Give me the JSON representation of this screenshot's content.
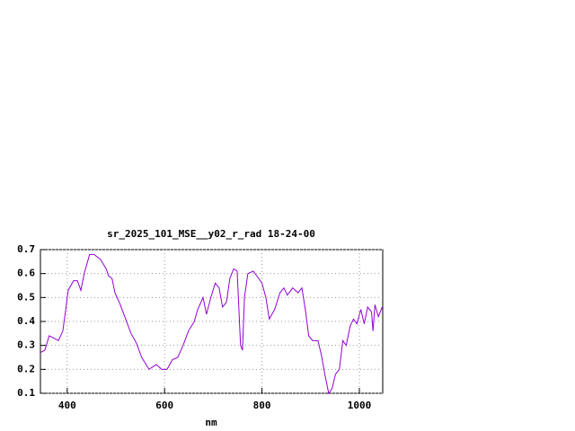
{
  "chart_data": {
    "type": "line",
    "title": "sr_2025_101_MSE__y02_r_rad 18-24-00",
    "x_label": "nm",
    "x": [
      345,
      354,
      363,
      373,
      382,
      391,
      397,
      402,
      413,
      421,
      428,
      435,
      446,
      455,
      468,
      480,
      485,
      492,
      498,
      509,
      520,
      531,
      542,
      553,
      568,
      583,
      594,
      605,
      616,
      627,
      638,
      649,
      661,
      668,
      679,
      686,
      695,
      704,
      712,
      719,
      727,
      734,
      742,
      749,
      756,
      760,
      764,
      771,
      782,
      793,
      800,
      808,
      815,
      826,
      837,
      845,
      852,
      863,
      874,
      882,
      889,
      896,
      904,
      915,
      922,
      930,
      937,
      944,
      951,
      959,
      966,
      973,
      981,
      988,
      995,
      1003,
      1010,
      1017,
      1025,
      1028,
      1032,
      1039,
      1047
    ],
    "series": [
      {
        "name": "sr_2025_101_MSE__y02_r_rad",
        "color": "#9400d3",
        "values": [
          0.27,
          0.28,
          0.34,
          0.33,
          0.32,
          0.36,
          0.45,
          0.53,
          0.57,
          0.57,
          0.53,
          0.6,
          0.68,
          0.68,
          0.66,
          0.62,
          0.59,
          0.58,
          0.52,
          0.47,
          0.41,
          0.35,
          0.31,
          0.25,
          0.2,
          0.22,
          0.2,
          0.2,
          0.24,
          0.25,
          0.3,
          0.36,
          0.4,
          0.45,
          0.5,
          0.43,
          0.5,
          0.56,
          0.54,
          0.46,
          0.48,
          0.58,
          0.62,
          0.61,
          0.3,
          0.28,
          0.5,
          0.6,
          0.61,
          0.58,
          0.56,
          0.5,
          0.41,
          0.45,
          0.52,
          0.54,
          0.51,
          0.54,
          0.52,
          0.54,
          0.45,
          0.34,
          0.32,
          0.32,
          0.26,
          0.17,
          0.1,
          0.12,
          0.18,
          0.2,
          0.32,
          0.3,
          0.38,
          0.41,
          0.39,
          0.45,
          0.39,
          0.46,
          0.44,
          0.36,
          0.47,
          0.42,
          0.46
        ]
      }
    ],
    "xlim": [
      345,
      1048
    ],
    "ylim": [
      0.1,
      0.7
    ],
    "xticks": [
      400,
      600,
      800,
      1000
    ],
    "yticks": [
      0.1,
      0.2,
      0.3,
      0.4,
      0.5,
      0.6,
      0.7
    ],
    "grid": true
  }
}
